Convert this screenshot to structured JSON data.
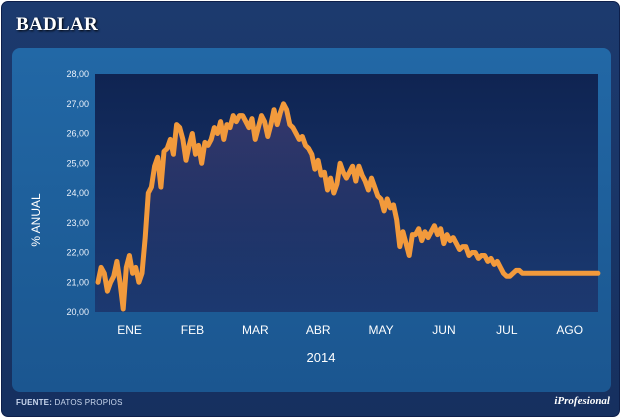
{
  "header": {
    "title": "BADLAR"
  },
  "footer": {
    "source_label": "FUENTE:",
    "source_value": "DATOS PROPIOS",
    "brand": "iProfesional"
  },
  "colors": {
    "line": "#f29a3c",
    "background": "#1a3468",
    "panel": "#1f62a0",
    "plot": "#142d5f"
  },
  "chart_data": {
    "type": "line",
    "title": "BADLAR",
    "ylabel": "% ANUAL",
    "xlabel": "2014",
    "ylim": [
      20,
      28
    ],
    "y_ticks": [
      "28,00",
      "27,00",
      "26,00",
      "25,00",
      "24,00",
      "23,00",
      "22,00",
      "21,00",
      "20,00"
    ],
    "categories": [
      "ENE",
      "FEB",
      "MAR",
      "ABR",
      "MAY",
      "JUN",
      "JUL",
      "AGO"
    ],
    "grid": false,
    "series": [
      {
        "x": [
          0.0,
          0.05,
          0.1,
          0.15,
          0.2,
          0.25,
          0.3,
          0.35,
          0.4,
          0.45,
          0.5,
          0.55,
          0.6,
          0.65,
          0.7,
          0.75,
          0.8,
          0.85,
          0.9,
          0.95,
          1.0,
          1.05,
          1.1,
          1.15,
          1.2,
          1.25,
          1.3,
          1.35,
          1.4,
          1.45,
          1.5,
          1.55,
          1.6,
          1.65,
          1.7,
          1.75,
          1.8,
          1.85,
          1.9,
          1.95,
          2.0,
          2.05,
          2.1,
          2.15,
          2.2,
          2.25,
          2.3,
          2.35,
          2.4,
          2.45,
          2.5,
          2.55,
          2.6,
          2.65,
          2.7,
          2.75,
          2.8,
          2.85,
          2.9,
          2.95,
          3.0,
          3.05,
          3.1,
          3.15,
          3.2,
          3.25,
          3.3,
          3.35,
          3.4,
          3.45,
          3.5,
          3.55,
          3.6,
          3.65,
          3.7,
          3.75,
          3.8,
          3.85,
          3.9,
          3.95,
          4.0,
          4.05,
          4.1,
          4.15,
          4.2,
          4.25,
          4.3,
          4.35,
          4.4,
          4.45,
          4.5,
          4.55,
          4.6,
          4.65,
          4.7,
          4.75,
          4.8,
          4.85,
          4.9,
          4.95,
          5.0,
          5.05,
          5.1,
          5.15,
          5.2,
          5.25,
          5.3,
          5.35,
          5.4,
          5.45,
          5.5,
          5.55,
          5.6,
          5.65,
          5.7,
          5.75,
          5.8,
          5.85,
          5.9,
          5.95,
          6.0,
          6.05,
          6.1,
          6.15,
          6.2,
          6.25,
          6.3,
          6.35,
          6.4,
          6.45,
          6.5,
          6.55,
          6.6,
          6.65,
          6.7,
          6.75,
          6.8,
          6.85,
          6.9,
          6.95,
          7.0,
          7.05,
          7.1,
          7.15,
          7.2,
          7.25,
          7.3,
          7.35,
          7.4,
          7.45,
          7.5,
          7.55,
          7.6,
          7.65,
          7.7,
          7.75,
          7.8,
          7.85,
          7.9,
          7.95
        ],
        "values": [
          21.0,
          21.5,
          21.3,
          20.7,
          21.0,
          21.2,
          21.7,
          21.0,
          20.1,
          21.5,
          21.9,
          21.3,
          21.5,
          21.0,
          21.3,
          22.5,
          24.0,
          24.2,
          24.9,
          25.2,
          24.2,
          25.4,
          25.5,
          25.8,
          25.3,
          26.3,
          26.2,
          25.8,
          25.1,
          25.6,
          26.0,
          25.3,
          25.6,
          25.0,
          25.7,
          25.6,
          25.8,
          26.2,
          26.0,
          26.4,
          25.8,
          26.3,
          26.2,
          26.6,
          26.4,
          26.6,
          26.6,
          26.4,
          26.2,
          26.5,
          25.8,
          26.2,
          26.6,
          26.4,
          25.9,
          26.3,
          26.8,
          26.3,
          26.7,
          27.0,
          26.8,
          26.3,
          26.2,
          26.0,
          25.8,
          25.9,
          25.6,
          25.5,
          25.3,
          24.8,
          25.1,
          24.6,
          24.7,
          24.1,
          24.5,
          24.0,
          24.3,
          25.0,
          24.7,
          24.5,
          24.7,
          24.9,
          24.4,
          24.9,
          24.6,
          24.4,
          24.1,
          24.5,
          24.2,
          23.9,
          23.8,
          23.4,
          23.8,
          23.5,
          23.6,
          23.1,
          22.2,
          22.7,
          22.3,
          21.9,
          22.6,
          22.6,
          22.8,
          22.4,
          22.7,
          22.5,
          22.7,
          22.9,
          22.6,
          22.8,
          22.3,
          22.6,
          22.4,
          22.5,
          22.3,
          22.1,
          22.2,
          22.2,
          21.9,
          22.0,
          22.0,
          21.8,
          21.9,
          21.9,
          21.7,
          21.8,
          21.6,
          21.7,
          21.5,
          21.3,
          21.2,
          21.2,
          21.3,
          21.4,
          21.4,
          21.3,
          21.3,
          21.3,
          21.3,
          21.3,
          21.3,
          21.3,
          21.3,
          21.3,
          21.3,
          21.3,
          21.3,
          21.3,
          21.3,
          21.3,
          21.3,
          21.3,
          21.3,
          21.3,
          21.3,
          21.3,
          21.3,
          21.3,
          21.3,
          21.3
        ]
      }
    ]
  }
}
